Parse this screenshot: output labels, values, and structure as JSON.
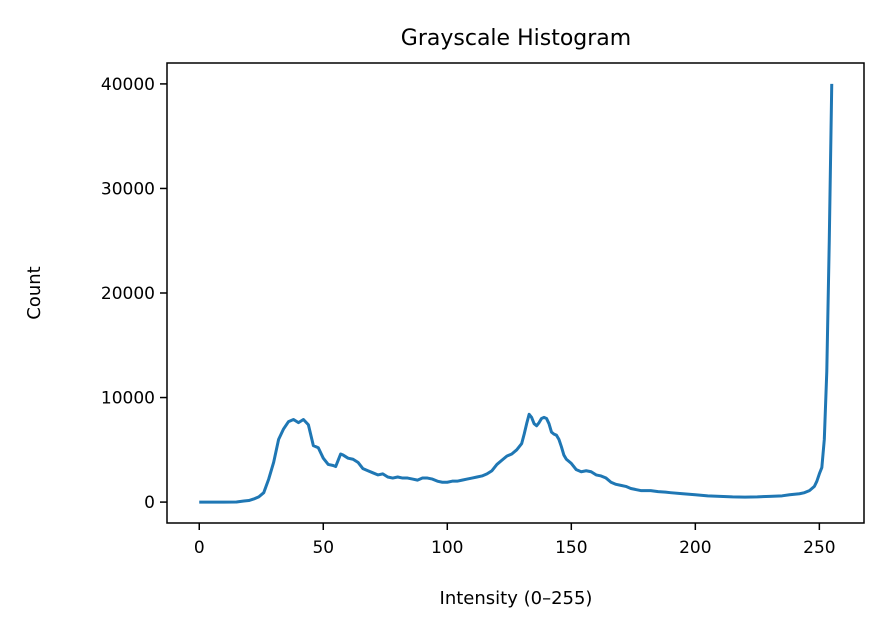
{
  "chart_data": {
    "type": "line",
    "title": "Grayscale Histogram",
    "xlabel": "Intensity (0–255)",
    "ylabel": "Count",
    "xlim": [
      -13,
      268
    ],
    "ylim": [
      -2000,
      42000
    ],
    "xticks": [
      0,
      50,
      100,
      150,
      200,
      250
    ],
    "yticks": [
      0,
      10000,
      20000,
      30000,
      40000
    ],
    "grid": false,
    "line_color": "#1f77b4",
    "series": [
      {
        "points": [
          [
            0,
            0
          ],
          [
            5,
            0
          ],
          [
            10,
            0
          ],
          [
            15,
            10
          ],
          [
            18,
            100
          ],
          [
            20,
            150
          ],
          [
            22,
            300
          ],
          [
            24,
            500
          ],
          [
            26,
            900
          ],
          [
            28,
            2200
          ],
          [
            30,
            3800
          ],
          [
            32,
            6000
          ],
          [
            34,
            7000
          ],
          [
            36,
            7700
          ],
          [
            38,
            7900
          ],
          [
            40,
            7600
          ],
          [
            42,
            7900
          ],
          [
            44,
            7400
          ],
          [
            46,
            5400
          ],
          [
            48,
            5200
          ],
          [
            50,
            4200
          ],
          [
            52,
            3600
          ],
          [
            54,
            3500
          ],
          [
            55,
            3400
          ],
          [
            56,
            4000
          ],
          [
            57,
            4600
          ],
          [
            58,
            4500
          ],
          [
            60,
            4200
          ],
          [
            62,
            4100
          ],
          [
            64,
            3800
          ],
          [
            66,
            3200
          ],
          [
            68,
            3000
          ],
          [
            70,
            2800
          ],
          [
            72,
            2600
          ],
          [
            74,
            2700
          ],
          [
            76,
            2400
          ],
          [
            78,
            2300
          ],
          [
            80,
            2400
          ],
          [
            82,
            2300
          ],
          [
            84,
            2300
          ],
          [
            86,
            2200
          ],
          [
            88,
            2100
          ],
          [
            90,
            2300
          ],
          [
            92,
            2300
          ],
          [
            94,
            2200
          ],
          [
            96,
            2000
          ],
          [
            98,
            1900
          ],
          [
            100,
            1900
          ],
          [
            102,
            2000
          ],
          [
            104,
            2000
          ],
          [
            106,
            2100
          ],
          [
            108,
            2200
          ],
          [
            110,
            2300
          ],
          [
            112,
            2400
          ],
          [
            114,
            2500
          ],
          [
            116,
            2700
          ],
          [
            118,
            3000
          ],
          [
            120,
            3600
          ],
          [
            122,
            4000
          ],
          [
            124,
            4400
          ],
          [
            126,
            4600
          ],
          [
            128,
            5000
          ],
          [
            130,
            5600
          ],
          [
            131,
            6500
          ],
          [
            132,
            7500
          ],
          [
            133,
            8400
          ],
          [
            134,
            8100
          ],
          [
            135,
            7500
          ],
          [
            136,
            7300
          ],
          [
            137,
            7600
          ],
          [
            138,
            8000
          ],
          [
            139,
            8100
          ],
          [
            140,
            8000
          ],
          [
            141,
            7500
          ],
          [
            142,
            6700
          ],
          [
            143,
            6500
          ],
          [
            144,
            6400
          ],
          [
            145,
            6000
          ],
          [
            146,
            5300
          ],
          [
            147,
            4500
          ],
          [
            148,
            4100
          ],
          [
            150,
            3700
          ],
          [
            152,
            3100
          ],
          [
            154,
            2900
          ],
          [
            156,
            3000
          ],
          [
            158,
            2900
          ],
          [
            160,
            2600
          ],
          [
            162,
            2500
          ],
          [
            164,
            2300
          ],
          [
            166,
            1900
          ],
          [
            168,
            1700
          ],
          [
            170,
            1600
          ],
          [
            172,
            1500
          ],
          [
            174,
            1300
          ],
          [
            176,
            1200
          ],
          [
            178,
            1100
          ],
          [
            180,
            1100
          ],
          [
            182,
            1100
          ],
          [
            185,
            1000
          ],
          [
            188,
            950
          ],
          [
            190,
            900
          ],
          [
            195,
            800
          ],
          [
            200,
            700
          ],
          [
            205,
            600
          ],
          [
            210,
            550
          ],
          [
            215,
            500
          ],
          [
            220,
            480
          ],
          [
            225,
            500
          ],
          [
            230,
            550
          ],
          [
            235,
            600
          ],
          [
            238,
            700
          ],
          [
            240,
            750
          ],
          [
            242,
            800
          ],
          [
            244,
            900
          ],
          [
            246,
            1100
          ],
          [
            248,
            1500
          ],
          [
            249,
            2000
          ],
          [
            250,
            2700
          ],
          [
            251,
            3300
          ],
          [
            252,
            6000
          ],
          [
            253,
            12500
          ],
          [
            254,
            25000
          ],
          [
            255,
            40000
          ]
        ]
      }
    ]
  }
}
